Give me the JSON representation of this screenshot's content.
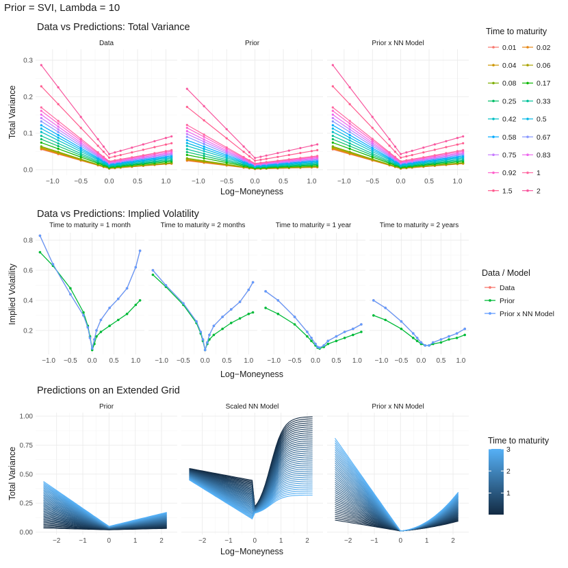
{
  "header": {
    "title": "Prior = SVI, Lambda = 10"
  },
  "chart_data": [
    {
      "type": "line",
      "title": "Data vs Predictions: Total Variance",
      "xlabel": "Log−Moneyness",
      "ylabel": "Total Variance",
      "xticks": [
        "−1.0",
        "−0.5",
        "0.0",
        "0.5",
        "1.0"
      ],
      "yticks": [
        "0.0",
        "0.1",
        "0.2",
        "0.3"
      ],
      "xlim": [
        -1.3,
        1.2
      ],
      "ylim": [
        -0.015,
        0.33
      ],
      "facets": [
        "Data",
        "Prior",
        "Prior x NN Model"
      ],
      "x": [
        -1.2,
        -0.9,
        -0.5,
        -0.2,
        -0.1,
        0.0,
        0.1,
        0.2,
        0.4,
        0.6,
        0.8,
        1.0,
        1.1
      ],
      "legend": {
        "title": "Time to maturity",
        "labels": [
          "0.01",
          "0.02",
          "0.04",
          "0.06",
          "0.08",
          "0.17",
          "0.25",
          "0.33",
          "0.42",
          "0.5",
          "0.58",
          "0.67",
          "0.75",
          "0.83",
          "0.92",
          "1",
          "1.5",
          "2"
        ],
        "colors": [
          "#F8766D",
          "#E68613",
          "#CD9600",
          "#ABA300",
          "#7CAE00",
          "#0CB702",
          "#00BE67",
          "#00C19A",
          "#00BFC4",
          "#00B8E7",
          "#00A9FF",
          "#8494FF",
          "#C77CFF",
          "#ED68ED",
          "#FF61CC",
          "#FF68A1",
          "#FF5C8F",
          "#F8579E"
        ]
      }
    },
    {
      "type": "line",
      "title": "Data vs Predictions: Implied Volatility",
      "xlabel": "Log−Moneyness",
      "ylabel": "Implied Volatility",
      "xticks": [
        "−1.0",
        "−0.5",
        "0.0",
        "0.5",
        "1.0"
      ],
      "yticks": [
        "0.2",
        "0.4",
        "0.6",
        "0.8"
      ],
      "xlim": [
        -1.3,
        1.2
      ],
      "ylim": [
        0.04,
        0.85
      ],
      "legend": {
        "title": "Data / Model",
        "labels": [
          "Data",
          "Prior",
          "Prior x NN Model"
        ],
        "colors": [
          "#F8766D",
          "#00BA38",
          "#619CFF"
        ]
      },
      "facets": [
        {
          "label": "Time to maturity =  1 month",
          "x": [
            -1.2,
            -0.9,
            -0.5,
            -0.2,
            -0.1,
            -0.05,
            0.0,
            0.05,
            0.1,
            0.2,
            0.4,
            0.6,
            0.8,
            1.0,
            1.1
          ],
          "data": [
            0.83,
            0.64,
            0.44,
            0.3,
            0.22,
            0.15,
            0.08,
            0.14,
            0.2,
            0.27,
            0.35,
            0.41,
            0.48,
            0.62,
            0.73
          ],
          "prior": [
            0.72,
            0.63,
            0.48,
            0.32,
            0.23,
            0.16,
            0.07,
            0.11,
            0.16,
            0.19,
            0.23,
            0.27,
            0.31,
            0.37,
            0.4
          ],
          "model": [
            0.83,
            0.64,
            0.44,
            0.3,
            0.22,
            0.15,
            0.08,
            0.14,
            0.2,
            0.27,
            0.35,
            0.41,
            0.48,
            0.62,
            0.73
          ]
        },
        {
          "label": "Time to maturity =  2 months",
          "x": [
            -1.2,
            -0.9,
            -0.5,
            -0.2,
            -0.1,
            -0.05,
            0.0,
            0.05,
            0.1,
            0.2,
            0.4,
            0.6,
            0.8,
            1.0,
            1.1
          ],
          "data": [
            0.6,
            0.5,
            0.38,
            0.26,
            0.19,
            0.14,
            0.07,
            0.12,
            0.17,
            0.23,
            0.29,
            0.34,
            0.39,
            0.47,
            0.52
          ],
          "prior": [
            0.57,
            0.49,
            0.37,
            0.25,
            0.18,
            0.13,
            0.07,
            0.11,
            0.14,
            0.17,
            0.21,
            0.25,
            0.28,
            0.31,
            0.32
          ],
          "model": [
            0.6,
            0.5,
            0.38,
            0.26,
            0.19,
            0.14,
            0.07,
            0.12,
            0.17,
            0.23,
            0.29,
            0.34,
            0.39,
            0.47,
            0.52
          ]
        },
        {
          "label": "Time to maturity =  1 year",
          "x": [
            -1.2,
            -0.9,
            -0.5,
            -0.2,
            -0.1,
            0.0,
            0.05,
            0.1,
            0.2,
            0.3,
            0.5,
            0.7,
            0.9,
            1.1
          ],
          "data": [
            0.46,
            0.4,
            0.29,
            0.19,
            0.15,
            0.11,
            0.09,
            0.085,
            0.1,
            0.13,
            0.16,
            0.19,
            0.21,
            0.24
          ],
          "prior": [
            0.35,
            0.31,
            0.24,
            0.16,
            0.13,
            0.1,
            0.085,
            0.08,
            0.09,
            0.11,
            0.13,
            0.15,
            0.17,
            0.19
          ],
          "model": [
            0.46,
            0.4,
            0.29,
            0.19,
            0.15,
            0.11,
            0.09,
            0.085,
            0.1,
            0.13,
            0.16,
            0.19,
            0.21,
            0.24
          ]
        },
        {
          "label": "Time to maturity =  2 years",
          "x": [
            -1.2,
            -0.9,
            -0.5,
            -0.2,
            -0.1,
            0.0,
            0.1,
            0.2,
            0.3,
            0.5,
            0.7,
            0.9,
            1.1
          ],
          "data": [
            0.4,
            0.35,
            0.26,
            0.18,
            0.15,
            0.12,
            0.1,
            0.1,
            0.12,
            0.14,
            0.16,
            0.18,
            0.21
          ],
          "prior": [
            0.3,
            0.27,
            0.21,
            0.15,
            0.13,
            0.11,
            0.1,
            0.1,
            0.11,
            0.12,
            0.14,
            0.15,
            0.17
          ],
          "model": [
            0.4,
            0.35,
            0.26,
            0.18,
            0.15,
            0.12,
            0.1,
            0.1,
            0.12,
            0.14,
            0.16,
            0.18,
            0.21
          ]
        }
      ]
    },
    {
      "type": "line",
      "title": "Predictions on an Extended Grid",
      "xlabel": "Log−Moneyness",
      "ylabel": "Total Variance",
      "xticks": [
        "−2",
        "−1",
        "0",
        "1",
        "2"
      ],
      "yticks": [
        "0.00",
        "0.25",
        "0.50",
        "0.75",
        "1.00"
      ],
      "xlim": [
        -2.8,
        2.6
      ],
      "ylim": [
        -0.02,
        1.03
      ],
      "facets": [
        "Prior",
        "Scaled NN Model",
        "Prior x NN Model"
      ],
      "legend": {
        "title": "Time to maturity",
        "ticks": [
          "1",
          "2",
          "3"
        ],
        "range": [
          0.02,
          3
        ],
        "low_color": "#132B43",
        "high_color": "#56B1F7"
      }
    }
  ]
}
